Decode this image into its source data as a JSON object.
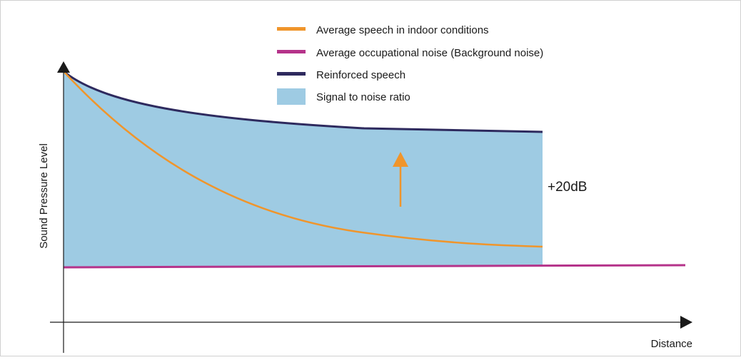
{
  "legend": [
    {
      "label": "Average speech in indoor conditions"
    },
    {
      "label": "Average occupational noise (Background noise)"
    },
    {
      "label": "Reinforced speech"
    },
    {
      "label": "Signal to noise ratio"
    }
  ],
  "axes": {
    "y_label": "Sound Pressure Level",
    "x_label": "Distance"
  },
  "annotation": "+20dB"
}
